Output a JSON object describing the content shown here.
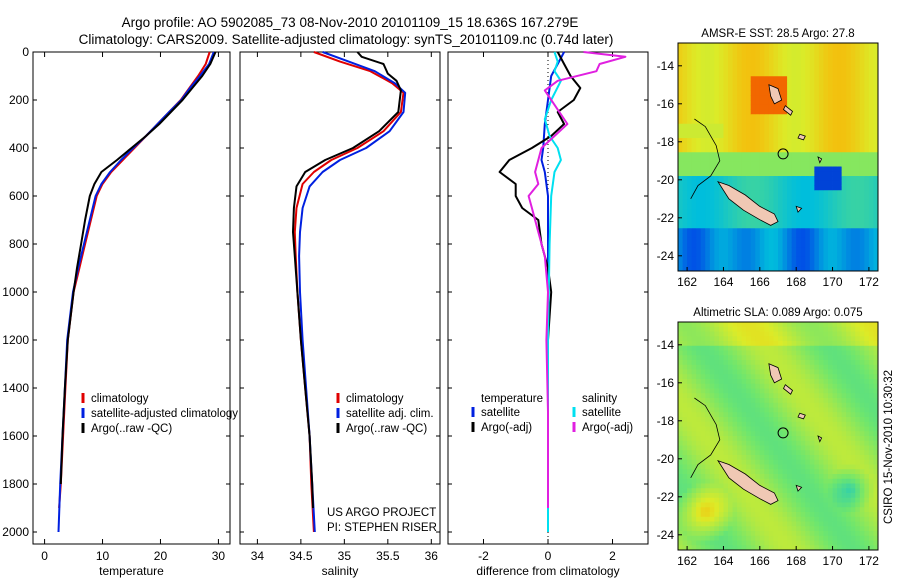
{
  "header": {
    "line1": "Argo profile: AO 5902085_73 08-Nov-2010 20101109_15 18.636S 167.279E",
    "line2": "Climatology: CARS2009. Satellite-adjusted climatology: synTS_20101109.nc (0.74d later)"
  },
  "credits": {
    "project": "US ARGO PROJECT",
    "pi": "PI: STEPHEN RISER",
    "stamp": "CSIRO 15-Nov-2010 10:30:32"
  },
  "colors": {
    "climatology": "#e00000",
    "satellite": "#0020e0",
    "argo": "#000000",
    "satellite_sal": "#00e0f0",
    "argo_sal_diff": "#e020e0"
  },
  "chart_data": [
    {
      "type": "line",
      "id": "temperature",
      "xlabel": "temperature",
      "xlim": [
        -2,
        32
      ],
      "ylim": [
        2050,
        0
      ],
      "xticks": [
        0,
        10,
        20,
        30
      ],
      "xtick_labels": [
        "0",
        "10",
        "20",
        "30"
      ],
      "yticks": [
        0,
        200,
        400,
        600,
        800,
        1000,
        1200,
        1400,
        1600,
        1800,
        2000
      ],
      "ytick_labels": [
        "0",
        "200",
        "400",
        "600",
        "800",
        "1000",
        "1200",
        "1400",
        "1600",
        "1800",
        "2000"
      ],
      "legend": [
        "climatology",
        "satellite-adjusted climatology",
        "Argo(..raw -QC)"
      ],
      "series": [
        {
          "name": "climatology",
          "color": "#e00000",
          "points": [
            [
              28.5,
              0
            ],
            [
              27.8,
              50
            ],
            [
              26.5,
              100
            ],
            [
              25,
              150
            ],
            [
              23.5,
              200
            ],
            [
              21.5,
              250
            ],
            [
              19.5,
              300
            ],
            [
              17.5,
              350
            ],
            [
              15.5,
              400
            ],
            [
              13.5,
              450
            ],
            [
              11.5,
              500
            ],
            [
              10,
              550
            ],
            [
              9,
              600
            ],
            [
              8,
              700
            ],
            [
              7,
              800
            ],
            [
              6,
              900
            ],
            [
              5,
              1000
            ],
            [
              4.5,
              1100
            ],
            [
              4,
              1200
            ],
            [
              3.6,
              1400
            ],
            [
              3.2,
              1600
            ],
            [
              2.8,
              1800
            ],
            [
              2.5,
              1900
            ]
          ]
        },
        {
          "name": "satellite-adjusted climatology",
          "color": "#0020e0",
          "points": [
            [
              29.2,
              0
            ],
            [
              28.4,
              50
            ],
            [
              26.8,
              100
            ],
            [
              25.1,
              150
            ],
            [
              23.6,
              200
            ],
            [
              21.5,
              250
            ],
            [
              19.5,
              300
            ],
            [
              17.5,
              350
            ],
            [
              15.3,
              400
            ],
            [
              13.2,
              450
            ],
            [
              11.3,
              500
            ],
            [
              9.8,
              550
            ],
            [
              8.8,
              600
            ],
            [
              7.8,
              700
            ],
            [
              6.8,
              800
            ],
            [
              5.8,
              900
            ],
            [
              4.9,
              1000
            ],
            [
              4.4,
              1100
            ],
            [
              3.9,
              1200
            ],
            [
              3.5,
              1400
            ],
            [
              3.1,
              1600
            ],
            [
              2.7,
              1800
            ],
            [
              2.4,
              2000
            ]
          ]
        },
        {
          "name": "Argo(..raw -QC)",
          "color": "#000000",
          "points": [
            [
              29.5,
              0
            ],
            [
              28.6,
              50
            ],
            [
              27.2,
              100
            ],
            [
              25.5,
              150
            ],
            [
              23.8,
              200
            ],
            [
              21.8,
              250
            ],
            [
              19.8,
              300
            ],
            [
              17.5,
              350
            ],
            [
              15,
              400
            ],
            [
              12.5,
              450
            ],
            [
              9.8,
              500
            ],
            [
              8.6,
              550
            ],
            [
              7.8,
              600
            ],
            [
              7,
              700
            ],
            [
              6.3,
              800
            ],
            [
              5.6,
              900
            ],
            [
              5,
              1000
            ],
            [
              4.5,
              1100
            ],
            [
              4,
              1200
            ],
            [
              3.5,
              1400
            ],
            [
              3.1,
              1600
            ],
            [
              2.8,
              1800
            ]
          ]
        }
      ]
    },
    {
      "type": "line",
      "id": "salinity",
      "xlabel": "salinity",
      "xlim": [
        33.8,
        36.1
      ],
      "ylim": [
        2050,
        0
      ],
      "xticks": [
        34,
        34.5,
        35,
        35.5,
        36
      ],
      "xtick_labels": [
        "34",
        "34.5",
        "35",
        "35.5",
        "36"
      ],
      "legend": [
        "climatology",
        "satellite adj. clim.",
        "Argo(..raw -QC)"
      ],
      "series": [
        {
          "name": "climatology",
          "color": "#e00000",
          "points": [
            [
              34.65,
              0
            ],
            [
              34.95,
              40
            ],
            [
              35.3,
              80
            ],
            [
              35.55,
              130
            ],
            [
              35.68,
              170
            ],
            [
              35.65,
              250
            ],
            [
              35.45,
              330
            ],
            [
              35.15,
              400
            ],
            [
              34.85,
              450
            ],
            [
              34.65,
              500
            ],
            [
              34.52,
              550
            ],
            [
              34.45,
              650
            ],
            [
              34.43,
              750
            ],
            [
              34.44,
              850
            ],
            [
              34.46,
              1000
            ],
            [
              34.5,
              1200
            ],
            [
              34.55,
              1400
            ],
            [
              34.6,
              1600
            ],
            [
              34.62,
              1800
            ],
            [
              34.65,
              2000
            ]
          ]
        },
        {
          "name": "satellite adj. clim.",
          "color": "#0020e0",
          "points": [
            [
              34.75,
              0
            ],
            [
              35.05,
              40
            ],
            [
              35.35,
              80
            ],
            [
              35.58,
              130
            ],
            [
              35.7,
              170
            ],
            [
              35.68,
              250
            ],
            [
              35.52,
              330
            ],
            [
              35.25,
              400
            ],
            [
              34.95,
              450
            ],
            [
              34.75,
              500
            ],
            [
              34.6,
              560
            ],
            [
              34.52,
              650
            ],
            [
              34.49,
              750
            ],
            [
              34.48,
              850
            ],
            [
              34.49,
              1000
            ],
            [
              34.52,
              1200
            ],
            [
              34.56,
              1400
            ],
            [
              34.6,
              1600
            ],
            [
              34.63,
              1800
            ],
            [
              34.66,
              2000
            ]
          ]
        },
        {
          "name": "Argo(..raw -QC)",
          "color": "#000000",
          "points": [
            [
              35.15,
              0
            ],
            [
              35.2,
              20
            ],
            [
              35.45,
              50
            ],
            [
              35.5,
              90
            ],
            [
              35.6,
              120
            ],
            [
              35.65,
              160
            ],
            [
              35.62,
              250
            ],
            [
              35.4,
              330
            ],
            [
              35.1,
              400
            ],
            [
              34.78,
              450
            ],
            [
              34.55,
              500
            ],
            [
              34.45,
              560
            ],
            [
              34.42,
              650
            ],
            [
              34.41,
              750
            ],
            [
              34.43,
              850
            ],
            [
              34.46,
              1000
            ],
            [
              34.5,
              1200
            ],
            [
              34.55,
              1400
            ],
            [
              34.6,
              1600
            ],
            [
              34.63,
              1800
            ],
            [
              34.64,
              1900
            ]
          ]
        }
      ]
    },
    {
      "type": "line",
      "id": "difference",
      "xlabel": "difference from climatology",
      "xlim": [
        -3.1,
        3.1
      ],
      "ylim": [
        2050,
        0
      ],
      "xticks": [
        -2,
        0,
        2
      ],
      "xtick_labels": [
        "-2",
        "0",
        "2"
      ],
      "legend_left_title": "temperature",
      "legend_left": [
        "satellite",
        "Argo(-adj)"
      ],
      "legend_right_title": "salinity",
      "legend_right": [
        "satellite",
        "Argo(-adj)"
      ],
      "series": [
        {
          "name": "temperature satellite",
          "color": "#0020e0",
          "points": [
            [
              0.5,
              0
            ],
            [
              0.3,
              50
            ],
            [
              0.1,
              100
            ],
            [
              0,
              200
            ],
            [
              -0.1,
              300
            ],
            [
              -0.15,
              400
            ],
            [
              -0.2,
              450
            ],
            [
              -0.1,
              500
            ],
            [
              0,
              600
            ],
            [
              0,
              800
            ],
            [
              0,
              1200
            ],
            [
              0,
              1600
            ],
            [
              0,
              2000
            ]
          ]
        },
        {
          "name": "temperature Argo(-adj)",
          "color": "#000000",
          "points": [
            [
              0.3,
              0
            ],
            [
              0.5,
              50
            ],
            [
              0.7,
              100
            ],
            [
              1,
              150
            ],
            [
              0.8,
              200
            ],
            [
              0.3,
              250
            ],
            [
              0.5,
              300
            ],
            [
              0.1,
              350
            ],
            [
              -0.5,
              400
            ],
            [
              -1.2,
              450
            ],
            [
              -1.5,
              500
            ],
            [
              -1.0,
              550
            ],
            [
              -1.0,
              600
            ],
            [
              -0.8,
              650
            ],
            [
              -0.3,
              700
            ],
            [
              -0.2,
              800
            ],
            [
              0,
              900
            ],
            [
              0.1,
              1000
            ],
            [
              0,
              1200
            ],
            [
              0,
              1400
            ],
            [
              0,
              1600
            ],
            [
              0,
              1800
            ],
            [
              0,
              1900
            ]
          ]
        },
        {
          "name": "salinity satellite",
          "color": "#00e0f0",
          "points": [
            [
              0.2,
              0
            ],
            [
              0.3,
              40
            ],
            [
              0.2,
              80
            ],
            [
              0.4,
              120
            ],
            [
              0.1,
              200
            ],
            [
              -0.1,
              280
            ],
            [
              0.05,
              350
            ],
            [
              0.3,
              400
            ],
            [
              0.4,
              450
            ],
            [
              0.2,
              500
            ],
            [
              0.1,
              600
            ],
            [
              0.05,
              800
            ],
            [
              0,
              1200
            ],
            [
              0,
              1600
            ],
            [
              0,
              2000
            ]
          ]
        },
        {
          "name": "salinity Argo(-adj)",
          "color": "#e020e0",
          "points": [
            [
              1.1,
              0
            ],
            [
              2.4,
              20
            ],
            [
              1.6,
              50
            ],
            [
              1.5,
              80
            ],
            [
              0.3,
              120
            ],
            [
              -0.1,
              160
            ],
            [
              0.2,
              220
            ],
            [
              0.6,
              300
            ],
            [
              0.2,
              350
            ],
            [
              -0.2,
              400
            ],
            [
              -0.3,
              450
            ],
            [
              -0.4,
              500
            ],
            [
              -0.3,
              550
            ],
            [
              -0.6,
              600
            ],
            [
              -0.5,
              650
            ],
            [
              -0.3,
              750
            ],
            [
              -0.1,
              850
            ],
            [
              0,
              1000
            ],
            [
              -0.05,
              1200
            ],
            [
              0,
              1500
            ],
            [
              0,
              1700
            ],
            [
              0,
              1900
            ]
          ]
        }
      ]
    },
    {
      "type": "heatmap",
      "id": "amsre-sst",
      "title": "AMSR-E SST: 28.5 Argo: 27.8",
      "xlim": [
        161.5,
        172.5
      ],
      "ylim": [
        -24.8,
        -12.8
      ],
      "xticks": [
        162,
        164,
        166,
        168,
        170,
        172
      ],
      "xtick_labels": [
        "162",
        "164",
        "166",
        "168",
        "170",
        "172"
      ],
      "yticks": [
        -14,
        -16,
        -18,
        -20,
        -22,
        -24
      ],
      "ytick_labels": [
        "-14",
        "-16",
        "-18",
        "-20",
        "-22",
        "-24"
      ],
      "argo_position": [
        167.279,
        -18.636
      ]
    },
    {
      "type": "heatmap",
      "id": "altimetric-sla",
      "title": "Altimetric SLA: 0.089 Argo: 0.075",
      "xlim": [
        161.5,
        172.5
      ],
      "ylim": [
        -24.8,
        -12.8
      ],
      "xticks": [
        162,
        164,
        166,
        168,
        170,
        172
      ],
      "xtick_labels": [
        "162",
        "164",
        "166",
        "168",
        "170",
        "172"
      ],
      "yticks": [
        -14,
        -16,
        -18,
        -20,
        -22,
        -24
      ],
      "ytick_labels": [
        "-14",
        "-16",
        "-18",
        "-20",
        "-22",
        "-24"
      ],
      "argo_position": [
        167.279,
        -18.636
      ]
    }
  ]
}
